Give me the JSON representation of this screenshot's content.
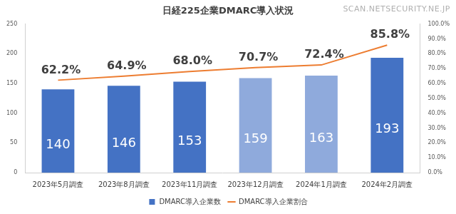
{
  "chart_data": {
    "type": "bar",
    "title": "日経225企業DMARC導入状況",
    "annotation": "SCAN.NETSECURITY.NE.JP",
    "categories": [
      "2023年5月調査",
      "2023年8月調査",
      "2023年11月調査",
      "2023年12月調査",
      "2024年1月調査",
      "2024年2月調査"
    ],
    "series": [
      {
        "name": "DMARC導入企業数",
        "type": "bar",
        "color": "#4472c4",
        "colors": [
          "#4472c4",
          "#4472c4",
          "#4472c4",
          "#8faadc",
          "#8faadc",
          "#4472c4"
        ],
        "values": [
          140,
          146,
          153,
          159,
          163,
          193
        ],
        "data_labels": true
      },
      {
        "name": "DMARC導入企業割合",
        "type": "line",
        "axis": "y2",
        "color": "#ed7d31",
        "marker": "none",
        "line_style": "solid",
        "values": [
          62.2,
          64.9,
          68.0,
          70.7,
          72.4,
          85.8
        ],
        "value_labels": [
          "62.2%",
          "64.9%",
          "68.0%",
          "70.7%",
          "72.4%",
          "85.8%"
        ],
        "data_labels": true
      }
    ],
    "ylim": [
      0,
      250
    ],
    "yticks": [
      0,
      50,
      100,
      150,
      200,
      250
    ],
    "y2lim": [
      0,
      100
    ],
    "y2ticks": [
      {
        "value": 0,
        "label": "0.0%"
      },
      {
        "value": 10,
        "label": "10.0%"
      },
      {
        "value": 20,
        "label": "20.0%"
      },
      {
        "value": 30,
        "label": "30.0%"
      },
      {
        "value": 40,
        "label": "40.0%"
      },
      {
        "value": 50,
        "label": "50.0%"
      },
      {
        "value": 60,
        "label": "60.0%"
      },
      {
        "value": 70,
        "label": "70.0%"
      },
      {
        "value": 80,
        "label": "80.0%"
      },
      {
        "value": 90,
        "label": "90.0%"
      },
      {
        "value": 100,
        "label": "100.0%"
      }
    ],
    "grid": false,
    "legend": "bottom"
  }
}
